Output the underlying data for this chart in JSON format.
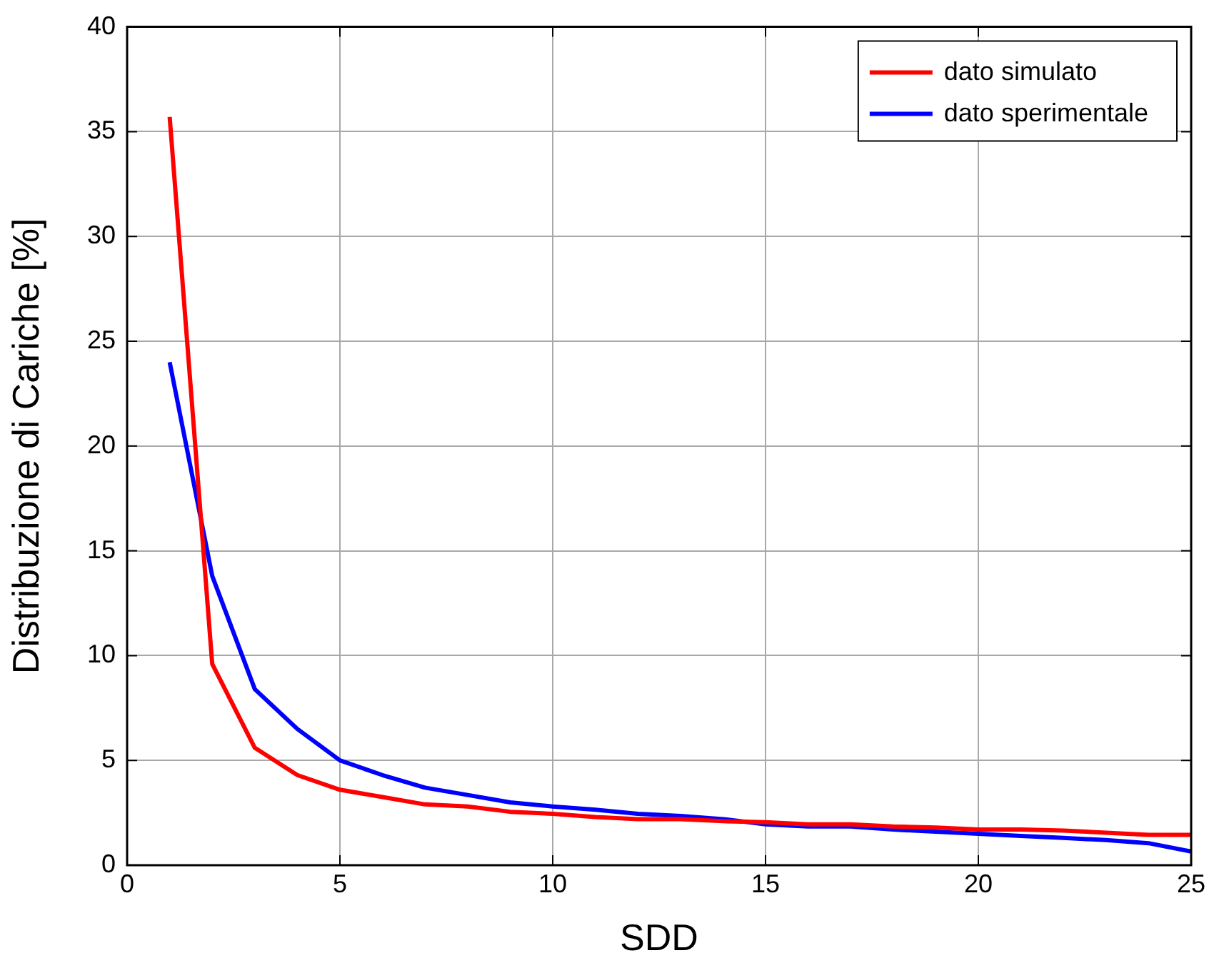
{
  "chart_data": {
    "type": "line",
    "xlabel": "SDD",
    "ylabel": "Distribuzione di Cariche [%]",
    "x": [
      1,
      2,
      3,
      4,
      5,
      6,
      7,
      8,
      9,
      10,
      11,
      12,
      13,
      14,
      15,
      16,
      17,
      18,
      19,
      20,
      21,
      22,
      23,
      24,
      25
    ],
    "series": [
      {
        "name": "dato simulato",
        "color": "#ff0000",
        "values": [
          35.7,
          9.6,
          5.6,
          4.3,
          3.6,
          3.25,
          2.9,
          2.8,
          2.55,
          2.45,
          2.3,
          2.2,
          2.2,
          2.1,
          2.05,
          1.95,
          1.95,
          1.85,
          1.8,
          1.7,
          1.7,
          1.65,
          1.55,
          1.45,
          1.45
        ]
      },
      {
        "name": "dato sperimentale",
        "color": "#0000ff",
        "values": [
          24.0,
          13.8,
          8.4,
          6.5,
          5.0,
          4.3,
          3.7,
          3.35,
          3.0,
          2.8,
          2.65,
          2.45,
          2.35,
          2.2,
          1.95,
          1.85,
          1.85,
          1.7,
          1.6,
          1.5,
          1.4,
          1.3,
          1.2,
          1.05,
          0.65
        ]
      }
    ],
    "xlim": [
      0,
      25
    ],
    "xticks": [
      0,
      5,
      10,
      15,
      20,
      25
    ],
    "ylim": [
      0,
      40
    ],
    "yticks": [
      0,
      5,
      10,
      15,
      20,
      25,
      30,
      35,
      40
    ],
    "grid": true,
    "legend": "top right",
    "marker": "none",
    "line_style": "solid"
  }
}
